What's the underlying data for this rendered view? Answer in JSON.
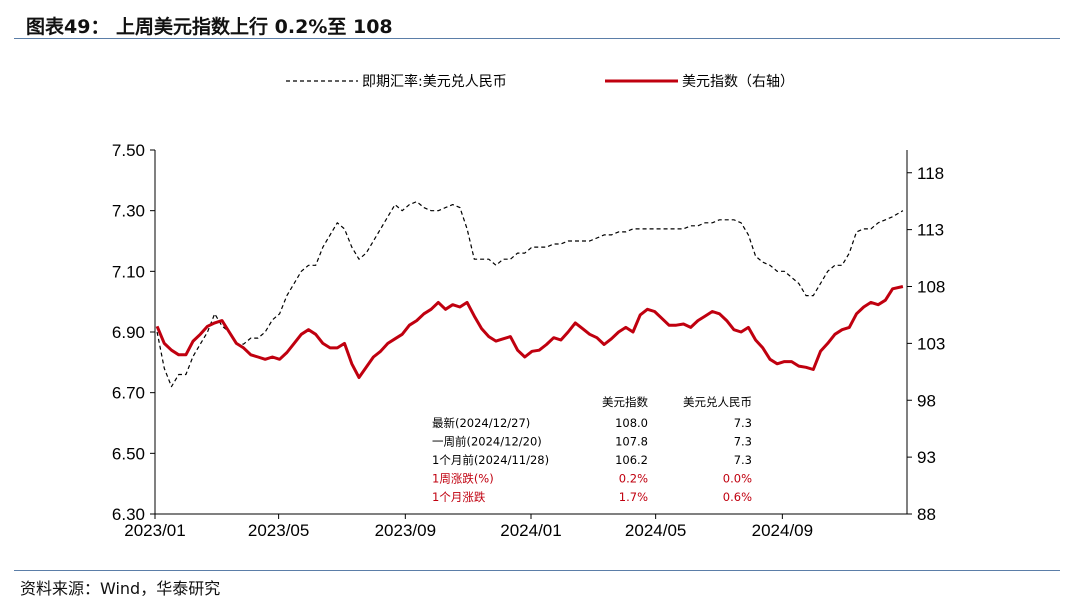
{
  "header": {
    "title": "图表49：  上周美元指数上行 0.2%至 108"
  },
  "footer": {
    "source": "资料来源：Wind，华泰研究"
  },
  "chart_data": {
    "type": "line",
    "x_ticks": [
      "2023/01",
      "2023/05",
      "2023/09",
      "2024/01",
      "2024/05",
      "2024/09"
    ],
    "left_axis": {
      "ticks": [
        "7.50",
        "7.30",
        "7.10",
        "6.90",
        "6.70",
        "6.50",
        "6.30"
      ],
      "ylim": [
        6.3,
        7.5
      ]
    },
    "right_axis": {
      "ticks": [
        "118",
        "113",
        "108",
        "103",
        "98",
        "93",
        "88"
      ],
      "ylim": [
        88,
        120
      ]
    },
    "legend_position": "top",
    "series": [
      {
        "name": "即期汇率:美元兑人民币",
        "axis": "left",
        "style": "dashed",
        "color": "#000000",
        "x": [
          "2023-01-03",
          "2023-01-10",
          "2023-01-17",
          "2023-01-24",
          "2023-01-31",
          "2023-02-07",
          "2023-02-14",
          "2023-02-21",
          "2023-02-28",
          "2023-03-07",
          "2023-03-14",
          "2023-03-21",
          "2023-03-28",
          "2023-04-04",
          "2023-04-11",
          "2023-04-18",
          "2023-04-25",
          "2023-05-02",
          "2023-05-09",
          "2023-05-16",
          "2023-05-23",
          "2023-05-30",
          "2023-06-06",
          "2023-06-13",
          "2023-06-20",
          "2023-06-27",
          "2023-07-04",
          "2023-07-11",
          "2023-07-18",
          "2023-07-25",
          "2023-08-01",
          "2023-08-08",
          "2023-08-15",
          "2023-08-22",
          "2023-08-29",
          "2023-09-05",
          "2023-09-12",
          "2023-09-19",
          "2023-09-26",
          "2023-10-03",
          "2023-10-10",
          "2023-10-17",
          "2023-10-24",
          "2023-10-31",
          "2023-11-07",
          "2023-11-14",
          "2023-11-21",
          "2023-11-28",
          "2023-12-05",
          "2023-12-12",
          "2023-12-19",
          "2023-12-26",
          "2024-01-02",
          "2024-01-09",
          "2024-01-16",
          "2024-01-23",
          "2024-01-30",
          "2024-02-06",
          "2024-02-13",
          "2024-02-20",
          "2024-02-27",
          "2024-03-05",
          "2024-03-12",
          "2024-03-19",
          "2024-03-26",
          "2024-04-02",
          "2024-04-09",
          "2024-04-16",
          "2024-04-23",
          "2024-04-30",
          "2024-05-07",
          "2024-05-14",
          "2024-05-21",
          "2024-05-28",
          "2024-06-04",
          "2024-06-11",
          "2024-06-18",
          "2024-06-25",
          "2024-07-02",
          "2024-07-09",
          "2024-07-16",
          "2024-07-23",
          "2024-07-30",
          "2024-08-06",
          "2024-08-13",
          "2024-08-20",
          "2024-08-27",
          "2024-09-03",
          "2024-09-10",
          "2024-09-17",
          "2024-09-24",
          "2024-10-01",
          "2024-10-08",
          "2024-10-15",
          "2024-10-22",
          "2024-10-29",
          "2024-11-05",
          "2024-11-12",
          "2024-11-19",
          "2024-11-26",
          "2024-12-03",
          "2024-12-10",
          "2024-12-17",
          "2024-12-27"
        ],
        "values": [
          6.9,
          6.78,
          6.72,
          6.76,
          6.76,
          6.82,
          6.86,
          6.9,
          6.96,
          6.92,
          6.9,
          6.86,
          6.86,
          6.88,
          6.88,
          6.9,
          6.94,
          6.96,
          7.02,
          7.06,
          7.1,
          7.12,
          7.12,
          7.18,
          7.22,
          7.26,
          7.24,
          7.18,
          7.14,
          7.16,
          7.2,
          7.24,
          7.28,
          7.32,
          7.3,
          7.32,
          7.33,
          7.31,
          7.3,
          7.3,
          7.31,
          7.32,
          7.31,
          7.24,
          7.14,
          7.14,
          7.14,
          7.12,
          7.14,
          7.14,
          7.16,
          7.16,
          7.18,
          7.18,
          7.18,
          7.19,
          7.19,
          7.2,
          7.2,
          7.2,
          7.2,
          7.21,
          7.22,
          7.22,
          7.23,
          7.23,
          7.24,
          7.24,
          7.24,
          7.24,
          7.24,
          7.24,
          7.24,
          7.24,
          7.25,
          7.25,
          7.26,
          7.26,
          7.27,
          7.27,
          7.27,
          7.26,
          7.22,
          7.15,
          7.13,
          7.12,
          7.1,
          7.1,
          7.08,
          7.06,
          7.02,
          7.02,
          7.06,
          7.1,
          7.12,
          7.12,
          7.16,
          7.23,
          7.24,
          7.24,
          7.26,
          7.27,
          7.28,
          7.3
        ]
      },
      {
        "name": "美元指数（右轴）",
        "axis": "right",
        "style": "solid",
        "color": "#c0000f",
        "x": [
          "2023-01-03",
          "2023-01-10",
          "2023-01-17",
          "2023-01-24",
          "2023-01-31",
          "2023-02-07",
          "2023-02-14",
          "2023-02-21",
          "2023-02-28",
          "2023-03-07",
          "2023-03-14",
          "2023-03-21",
          "2023-03-28",
          "2023-04-04",
          "2023-04-11",
          "2023-04-18",
          "2023-04-25",
          "2023-05-02",
          "2023-05-09",
          "2023-05-16",
          "2023-05-23",
          "2023-05-30",
          "2023-06-06",
          "2023-06-13",
          "2023-06-20",
          "2023-06-27",
          "2023-07-04",
          "2023-07-11",
          "2023-07-18",
          "2023-07-25",
          "2023-08-01",
          "2023-08-08",
          "2023-08-15",
          "2023-08-22",
          "2023-08-29",
          "2023-09-05",
          "2023-09-12",
          "2023-09-19",
          "2023-09-26",
          "2023-10-03",
          "2023-10-10",
          "2023-10-17",
          "2023-10-24",
          "2023-10-31",
          "2023-11-07",
          "2023-11-14",
          "2023-11-21",
          "2023-11-28",
          "2023-12-05",
          "2023-12-12",
          "2023-12-19",
          "2023-12-26",
          "2024-01-02",
          "2024-01-09",
          "2024-01-16",
          "2024-01-23",
          "2024-01-30",
          "2024-02-06",
          "2024-02-13",
          "2024-02-20",
          "2024-02-27",
          "2024-03-05",
          "2024-03-12",
          "2024-03-19",
          "2024-03-26",
          "2024-04-02",
          "2024-04-09",
          "2024-04-16",
          "2024-04-23",
          "2024-04-30",
          "2024-05-07",
          "2024-05-14",
          "2024-05-21",
          "2024-05-28",
          "2024-06-04",
          "2024-06-11",
          "2024-06-18",
          "2024-06-25",
          "2024-07-02",
          "2024-07-09",
          "2024-07-16",
          "2024-07-23",
          "2024-07-30",
          "2024-08-06",
          "2024-08-13",
          "2024-08-20",
          "2024-08-27",
          "2024-09-03",
          "2024-09-10",
          "2024-09-17",
          "2024-09-24",
          "2024-10-01",
          "2024-10-08",
          "2024-10-15",
          "2024-10-22",
          "2024-10-29",
          "2024-11-05",
          "2024-11-12",
          "2024-11-19",
          "2024-11-26",
          "2024-12-03",
          "2024-12-10",
          "2024-12-17",
          "2024-12-27"
        ],
        "values": [
          104.5,
          103.0,
          102.4,
          102.0,
          102.0,
          103.2,
          103.8,
          104.5,
          104.8,
          105.0,
          104.0,
          103.0,
          102.6,
          102.0,
          101.8,
          101.6,
          101.8,
          101.6,
          102.2,
          103.0,
          103.8,
          104.2,
          103.8,
          103.0,
          102.6,
          102.6,
          103.0,
          101.2,
          100.0,
          100.9,
          101.8,
          102.3,
          103.0,
          103.4,
          103.8,
          104.6,
          105.0,
          105.6,
          106.0,
          106.6,
          106.0,
          106.4,
          106.2,
          106.6,
          105.4,
          104.3,
          103.6,
          103.2,
          103.4,
          103.6,
          102.4,
          101.8,
          102.3,
          102.4,
          102.9,
          103.5,
          103.3,
          104.0,
          104.8,
          104.3,
          103.8,
          103.5,
          102.9,
          103.4,
          104.0,
          104.4,
          104.0,
          105.5,
          106.0,
          105.8,
          105.2,
          104.6,
          104.6,
          104.7,
          104.4,
          105.0,
          105.4,
          105.8,
          105.6,
          105.0,
          104.2,
          104.0,
          104.4,
          103.3,
          102.6,
          101.6,
          101.2,
          101.4,
          101.4,
          101.0,
          100.9,
          100.7,
          102.3,
          103.0,
          103.8,
          104.2,
          104.4,
          105.6,
          106.2,
          106.6,
          106.4,
          106.8,
          107.8,
          108.0
        ]
      }
    ],
    "table": {
      "headers": [
        "",
        "美元指数",
        "美元兑人民币"
      ],
      "rows": [
        {
          "label": "最新(2024/12/27)",
          "usd_index": "108.0",
          "usdcny": "7.3",
          "highlight": false
        },
        {
          "label": "一周前(2024/12/20)",
          "usd_index": "107.8",
          "usdcny": "7.3",
          "highlight": false
        },
        {
          "label": "1个月前(2024/11/28)",
          "usd_index": "106.2",
          "usdcny": "7.3",
          "highlight": false
        },
        {
          "label": "1周涨跌(%)",
          "usd_index": "0.2%",
          "usdcny": "0.0%",
          "highlight": true
        },
        {
          "label": "1个月涨跌",
          "usd_index": "1.7%",
          "usdcny": "0.6%",
          "highlight": true
        }
      ]
    }
  }
}
